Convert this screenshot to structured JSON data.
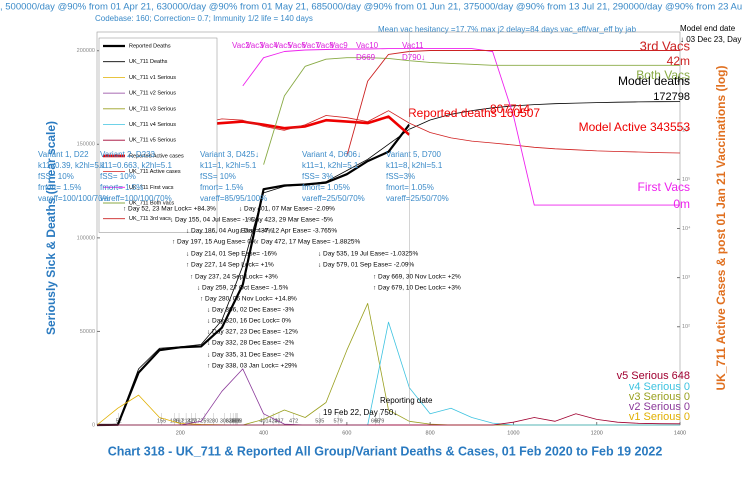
{
  "chart_data": {
    "type": "line",
    "top_note": ", 500000/day @90% from 01 Apr 21, 630000/day @90% from 01 May 21, 685000/day @90% from 01 Jun 21, 375000/day @90% from 13 Jul 21, 290000/day @90% from 23 Au",
    "codebase_note": "Codebase: 160; Correction= 0.7; Immunity 1/2 life = 140 days",
    "hesitancy_note": "Mean vac hesitancy =17.7% max j2 delay=84 days vac_eff/var_eff by jab",
    "model_end_label": "Model end date",
    "model_end_date": "↓ 03 Dec 23, Day",
    "title": "Chart 318 - UK_711 & Reported All Group/Variant Deaths & Cases, 01 Feb 2020 to Feb 19 2022",
    "ylabel": "Seriously Sick & Deaths (linear scale)",
    "y2label": "UK_711 Active Cases & post 01 Jan 21 Vaccinations (log)",
    "xlim": [
      0,
      1400
    ],
    "xticks": [
      200,
      400,
      600,
      800,
      1000,
      1200,
      1400
    ],
    "ylim": [
      0,
      210000
    ],
    "yticks": [
      0,
      50000,
      100000,
      150000,
      200000
    ],
    "y2lim": [
      1,
      100000000
    ],
    "y2scale": "log",
    "y2ticks": [
      {
        "value": 100,
        "label": "10²"
      },
      {
        "value": 1000,
        "label": "10³"
      },
      {
        "value": 10000,
        "label": "10⁴"
      },
      {
        "value": 100000,
        "label": "10⁵"
      },
      {
        "value": 1000000,
        "label": "10⁶"
      },
      {
        "value": 10000000,
        "label": "10⁷"
      }
    ],
    "legend": "upper left",
    "x": [
      0,
      50,
      100,
      150,
      200,
      250,
      300,
      350,
      400,
      450,
      500,
      550,
      600,
      650,
      700,
      750,
      800,
      850,
      900,
      950,
      1000,
      1050,
      1100,
      1150,
      1200,
      1250,
      1300,
      1350,
      1400
    ],
    "series": [
      {
        "name": "Reported Deaths",
        "color": "#000000",
        "values": [
          0,
          100,
          28000,
          40000,
          41500,
          42000,
          52000,
          75000,
          126000,
          128000,
          128500,
          129500,
          134000,
          141000,
          146000,
          160507,
          null,
          null,
          null,
          null,
          null,
          null,
          null,
          null,
          null,
          null,
          null,
          null,
          null
        ]
      },
      {
        "name": "UK_711 Deaths",
        "color": "#000000",
        "values": [
          0,
          500,
          30000,
          41000,
          41800,
          43000,
          56000,
          85000,
          124000,
          127500,
          128500,
          130000,
          136000,
          142000,
          150000,
          158000,
          163000,
          166000,
          168000,
          169500,
          170500,
          171200,
          171700,
          172000,
          172300,
          172500,
          172650,
          172750,
          172798
        ]
      },
      {
        "name": "UK_711 v1 Serious",
        "color": "#e0b000",
        "values": [
          0,
          9000,
          16000,
          4000,
          800,
          300,
          100,
          0,
          0,
          0,
          0,
          0,
          0,
          0,
          0,
          0,
          0,
          0,
          0,
          0,
          0,
          0,
          0,
          0,
          0,
          0,
          0,
          0,
          0
        ]
      },
      {
        "name": "UK_711 v2 Serious",
        "color": "#8b3a9a",
        "values": [
          0,
          0,
          0,
          0,
          0,
          2000,
          18000,
          30000,
          6000,
          500,
          0,
          0,
          0,
          0,
          0,
          0,
          0,
          0,
          0,
          0,
          0,
          0,
          0,
          0,
          0,
          0,
          0,
          0,
          0
        ]
      },
      {
        "name": "UK_711 v3 Serious",
        "color": "#9aa020",
        "values": [
          0,
          0,
          0,
          0,
          0,
          0,
          0,
          0,
          3000,
          8000,
          4000,
          12000,
          40000,
          65000,
          8000,
          2000,
          500,
          0,
          0,
          0,
          0,
          0,
          0,
          0,
          0,
          0,
          0,
          0,
          0
        ]
      },
      {
        "name": "UK_711 v4 Serious",
        "color": "#3ec3e0",
        "values": [
          0,
          0,
          0,
          0,
          0,
          0,
          0,
          0,
          0,
          0,
          0,
          0,
          0,
          0,
          55000,
          20000,
          6000,
          9000,
          4000,
          1000,
          0,
          0,
          0,
          0,
          0,
          0,
          0,
          0,
          0
        ]
      },
      {
        "name": "UK_711 v5 Serious",
        "color": "#a00030",
        "values": [
          0,
          0,
          0,
          0,
          0,
          0,
          0,
          0,
          0,
          0,
          0,
          0,
          0,
          0,
          0,
          0,
          0,
          0,
          0,
          0,
          1500,
          4000,
          2000,
          6000,
          3000,
          1500,
          900,
          700,
          648
        ]
      },
      {
        "name": "Reported Active cases",
        "color": "#ee0000",
        "axis": "y2",
        "values": [
          null,
          20000,
          1100000,
          1200000,
          1100000,
          1300000,
          1400000,
          1500000,
          1300000,
          1100000,
          1200000,
          1600000,
          1500000,
          1400000,
          1900000,
          807714,
          null,
          null,
          null,
          null,
          null,
          null,
          null,
          null,
          null,
          null,
          null,
          null,
          null
        ]
      },
      {
        "name": "UK_711 Active cases",
        "color": "#d02020",
        "axis": "y2",
        "values": [
          null,
          30000,
          1000000,
          1300000,
          1200000,
          1400000,
          1700000,
          1600000,
          1200000,
          1000000,
          1300000,
          2000000,
          1800000,
          1500000,
          2500000,
          1400000,
          900000,
          700000,
          600000,
          550000,
          500000,
          450000,
          420000,
          400000,
          380000,
          370000,
          360000,
          350000,
          343553
        ]
      },
      {
        "name": "UK_711 First vacs",
        "color": "#ee22ee",
        "axis": "y2",
        "values": [
          null,
          null,
          null,
          null,
          null,
          null,
          null,
          8000000,
          30000000,
          40000000,
          43000000,
          44000000,
          45000000,
          45000000,
          46000000,
          46000000,
          46000000,
          46000000,
          46000000,
          40000000,
          2000000,
          30000,
          30000,
          30000,
          30000,
          30000,
          30000,
          30000,
          30000
        ]
      },
      {
        "name": "UK_711 Both vacs",
        "color": "#88aa44",
        "axis": "y2",
        "values": [
          null,
          null,
          null,
          null,
          null,
          null,
          null,
          null,
          200000,
          5000000,
          20000000,
          28000000,
          30000000,
          30000000,
          29000000,
          26000000,
          24000000,
          23000000,
          22000000,
          21000000,
          21000000,
          21000000,
          21000000,
          21000000,
          21000000,
          21000000,
          21000000,
          21000000,
          21000000
        ]
      },
      {
        "name": "UK_711 3rd vacs",
        "color": "#cc2222",
        "axis": "y2",
        "values": [
          null,
          null,
          null,
          null,
          null,
          null,
          null,
          null,
          null,
          null,
          null,
          null,
          300000,
          10000000,
          35000000,
          40000000,
          42000000,
          42000000,
          42000000,
          42000000,
          42000000,
          42000000,
          42000000,
          42000000,
          42000000,
          42000000,
          42000000,
          42000000,
          42000000
        ]
      }
    ],
    "end_labels": [
      {
        "text": "3rd Vacs",
        "color": "#cc2222"
      },
      {
        "text": "42m",
        "color": "#cc2222"
      },
      {
        "text": "Both Vacs",
        "color": "#88aa44"
      },
      {
        "text": "Model deaths",
        "color": "#000000"
      },
      {
        "text": "172798",
        "color": "#000000"
      },
      {
        "text": "Reported deaths 160507",
        "color": "#ee0000"
      },
      {
        "text": "807714",
        "color": "#ee0000"
      },
      {
        "text": "Model Active 343553",
        "color": "#ee0000"
      },
      {
        "text": "First Vacs",
        "color": "#ee22ee"
      },
      {
        "text": "0m",
        "color": "#ee22ee"
      },
      {
        "text": "v5 Serious 648",
        "color": "#a00030"
      },
      {
        "text": "v4 Serious 0",
        "color": "#3ec3e0"
      },
      {
        "text": "v3 Serious 0",
        "color": "#9aa020"
      },
      {
        "text": "v2 Serious 0",
        "color": "#8b3a9a"
      },
      {
        "text": "v1 Serious 0",
        "color": "#e0b000"
      }
    ],
    "variants": [
      [
        "Variant 1, D22",
        "k11=0.39, k2hl=5.1",
        "fSS= 10%",
        "fmort= 1.5%",
        "vareff=100/100/70%"
      ],
      [
        "Variant 2, D233",
        "k11=0.663, k2hl=5.1",
        "fSS= 10%",
        "fmort= 1.5%",
        "vareff=100/100/70%"
      ],
      [
        "Variant 3, D425↓",
        "k11=1, k2hl=5.1",
        "fSS= 10%",
        "fmort= 1.5%",
        "vareff=85/95/100%"
      ],
      [
        "Variant 4, D606↓",
        "k11=1, k2hl=5.1",
        "fSS= 3%",
        "fmort= 1.05%",
        "vareff=25/50/70%"
      ],
      [
        "Variant 5, D700",
        "k11=8, k2hl=5.1",
        "fSS=3%",
        "fmort= 1.05%",
        "vareff=25/50/70%"
      ]
    ],
    "vac_labels": [
      "Vac2",
      "Vac3",
      "Vac4",
      "Vac5",
      "Vac6",
      "Vac7",
      "Vac8",
      "Vac9",
      "Vac10",
      "Vac11"
    ],
    "vac_days": [
      "D669",
      "D790↓"
    ],
    "events": [
      "↑ Day 52, 23 Mar Lock= +84.3%",
      "↓ Day 155, 04 Jul Ease= -1%",
      "↓ Day 186, 04 Aug Ease= -4%",
      "↑ Day 197, 15 Aug Ease= 0%",
      "↓ Day 214, 01 Sep Ease= -16%",
      "↑ Day 227, 14 Sep Lock= +1%",
      "↑ Day 237, 24 Sep Lock= +3%",
      "↓ Day 259, 27 Oct Ease= -1.5%",
      "↑ Day 280, 06 Nov Lock= +14.8%",
      "↓ Day 306, 02 Dec Ease= -3%",
      "↓ Day 320, 16 Dec Lock= 0%",
      "↓ Day 327, 23 Dec Ease= -12%",
      "↓ Day 332, 28 Dec Ease= -2%",
      "↓ Day 335, 31 Dec Ease= -2%",
      "↑ Day 338, 03 Jan Lock= +29%",
      "↓ Day 401, 07 Mar Ease= -2.09%",
      "↓ Day 423, 29 Mar Ease= -5%",
      "↓ Day 437, 12 Apr Ease= -3.765%",
      "↑ Day 472, 17 May Ease= -1.8825%",
      "↓ Day 535, 19 Jul Ease= -1.0325%",
      "↓ Day 579, 01 Sep Ease= -2.09%",
      "↑ Day 669, 30 Nov Lock= +2%",
      "↑ Day 679, 10 Dec Lock= +3%"
    ],
    "event_days": [
      52,
      155,
      186,
      197,
      214,
      227,
      237,
      259,
      280,
      306,
      320,
      327,
      332,
      335,
      338,
      401,
      423,
      437,
      472,
      535,
      579,
      669,
      679
    ],
    "reporting_label": "Reporting date",
    "reporting_date": "19 Feb 22, Day 750↓"
  }
}
